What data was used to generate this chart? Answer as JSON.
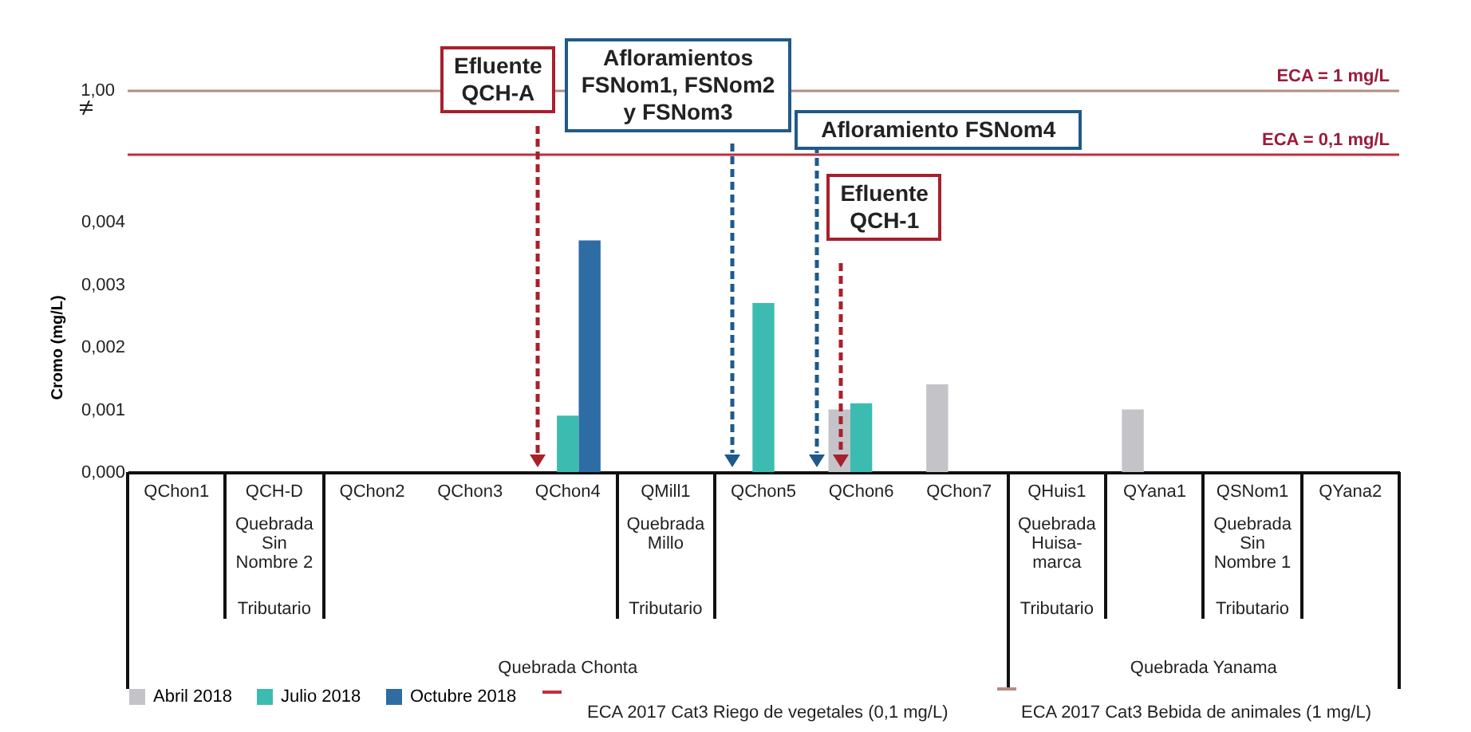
{
  "chart_data": {
    "type": "bar",
    "ylabel": "Cromo (mg/L)",
    "categories": [
      "QChon1",
      "QCH-D",
      "QChon2",
      "QChon3",
      "QChon4",
      "QMill1",
      "QChon5",
      "QChon6",
      "QChon7",
      "QHuis1",
      "QYana1",
      "QSNom1",
      "QYana2"
    ],
    "series": [
      {
        "name": "Abril 2018",
        "color": "#c4c4c8",
        "values": [
          null,
          null,
          null,
          null,
          null,
          null,
          null,
          0.001,
          0.0014,
          null,
          0.001,
          null,
          null
        ]
      },
      {
        "name": "Julio 2018",
        "color": "#3cbcb0",
        "values": [
          null,
          null,
          null,
          null,
          0.0009,
          null,
          0.0027,
          0.0011,
          null,
          null,
          null,
          null,
          null
        ]
      },
      {
        "name": "Octubre 2018",
        "color": "#2e6ca4",
        "values": [
          null,
          null,
          null,
          null,
          0.0037,
          null,
          null,
          null,
          null,
          null,
          null,
          null,
          null
        ]
      }
    ],
    "ylim": [
      0,
      0.004
    ],
    "y2lim": [
      0.05,
      1
    ],
    "log": "y2",
    "yticks": [
      {
        "value": 0,
        "label": "0,000"
      },
      {
        "value": 0.001,
        "label": "0,001"
      },
      {
        "value": 0.002,
        "label": "0,002"
      },
      {
        "value": 0.003,
        "label": "0,003"
      },
      {
        "value": 0.004,
        "label": "0,004"
      }
    ],
    "ref_lines": [
      {
        "axis": "y2",
        "value": 0.1,
        "label": "ECA = 0,1 mg/L",
        "color": "#c0303c"
      },
      {
        "axis": "y2",
        "value": 1,
        "label": "ECA = 1 mg/L",
        "color": "#b48c82"
      }
    ],
    "legend": "bottom",
    "annotations": [
      "Efluente QCH-A",
      "Afloramientos FSNom1, FSNom2 y FSNom3",
      "Afloramiento FSNom4",
      "Efluente QCH-1",
      "Quebrada Chonta",
      "Quebrada Yanama",
      "ECA 2017 Cat3 Riego de vegetales (0,1 mg/L)",
      "ECA 2017 Cat3 Bebida de animales (1 mg/L)",
      "Quebrada Sin Nombre 2",
      "Tributario",
      "Quebrada Millo",
      "Tributario",
      "Quebrada Huisa-marca",
      "Tributario",
      "Quebrada Sin Nombre 1",
      "Tributario",
      "1,00"
    ]
  }
}
